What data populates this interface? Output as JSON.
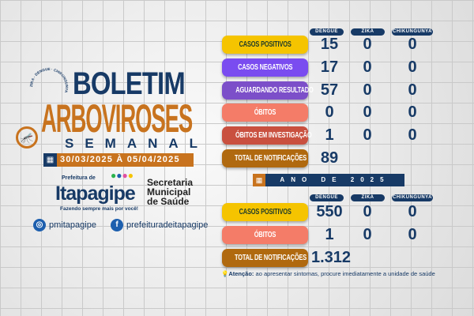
{
  "title": {
    "line1": "BOLETIM",
    "line2": "ARBOVIROSES",
    "line3": "SEMANAL",
    "ring_text": "ZIKA · DENGUE · CHIKUNGUNYA",
    "date_range": "30/03/2025 À 05/04/2025",
    "icon": "calendar-icon"
  },
  "logo": {
    "prefix": "Prefeitura de",
    "name": "Itapagipe",
    "slogan": "Fazendo sempre mais por você!",
    "secretaria": [
      "Secretaria",
      "Municipal",
      "de Saúde"
    ]
  },
  "social": {
    "instagram": "pmitapagipe",
    "facebook": "prefeituradeitapagipe"
  },
  "weekly": {
    "columns": [
      "DENGUE",
      "ZIKA",
      "CHIKUNGUNYA"
    ],
    "rows": [
      {
        "label": "CASOS POSITIVOS",
        "color": "#f5c400",
        "text": "#1e3a2a",
        "values": [
          "15",
          "0",
          "0"
        ]
      },
      {
        "label": "CASOS NEGATIVOS",
        "color": "#7a4cf0",
        "values": [
          "17",
          "0",
          "0"
        ]
      },
      {
        "label": "AGUARDANDO RESULTADO",
        "color": "#7c4fc9",
        "values": [
          "57",
          "0",
          "0"
        ]
      },
      {
        "label": "ÓBITOS",
        "color": "#f47c68",
        "values": [
          "0",
          "0",
          "0"
        ]
      },
      {
        "label": "ÓBITOS EM INVESTIGAÇÃO",
        "color": "#c9503f",
        "values": [
          "1",
          "0",
          "0"
        ]
      },
      {
        "label": "TOTAL DE NOTIFICAÇÕES",
        "color": "#b0690f",
        "values": [
          "89"
        ]
      }
    ]
  },
  "annual": {
    "title": "ANO DE 2025",
    "columns": [
      "DENGUE",
      "ZIKA",
      "CHIKUNGUNYA"
    ],
    "rows": [
      {
        "label": "CASOS POSITIVOS",
        "color": "#f5c400",
        "text": "#1e3a2a",
        "values": [
          "550",
          "0",
          "0"
        ]
      },
      {
        "label": "ÓBITOS",
        "color": "#f47c68",
        "values": [
          "1",
          "0",
          "0"
        ]
      },
      {
        "label": "TOTAL DE NOTIFICAÇÕES",
        "color": "#b0690f",
        "values": [
          "1.312"
        ]
      }
    ]
  },
  "attention": {
    "label": "Atenção:",
    "text": " ao apresentar sintomas, procure imediatamente a unidade de saúde"
  }
}
